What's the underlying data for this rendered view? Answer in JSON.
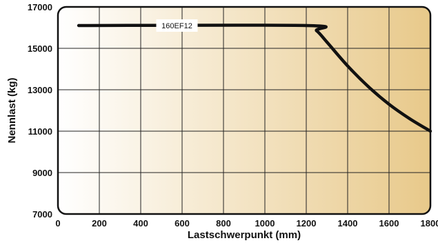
{
  "chart_data": {
    "type": "line",
    "title": "",
    "xlabel": "Lastschwerpunkt (mm)",
    "ylabel": "Nennlast (kg)",
    "xlim": [
      0,
      1800
    ],
    "ylim": [
      7000,
      17000
    ],
    "x_ticks": [
      "0",
      "200",
      "400",
      "600",
      "800",
      "1000",
      "1200",
      "1400",
      "1600",
      "1800"
    ],
    "y_ticks": [
      "7000",
      "9000",
      "11000",
      "13000",
      "15000",
      "17000"
    ],
    "grid": true,
    "legend": "none",
    "background": "gradient cream to tan (left to right)",
    "colors": {
      "line": "#111111",
      "grid": "#222222",
      "frame": "#111111",
      "bg_start": "#ffffff",
      "bg_end": "#e8c98a"
    },
    "series": [
      {
        "name": "160EF12",
        "x": [
          100,
          1200,
          1250,
          1300,
          1400,
          1500,
          1600,
          1700,
          1800
        ],
        "y": [
          16100,
          16100,
          15850,
          15300,
          14150,
          13150,
          12300,
          11600,
          11000
        ]
      }
    ]
  }
}
